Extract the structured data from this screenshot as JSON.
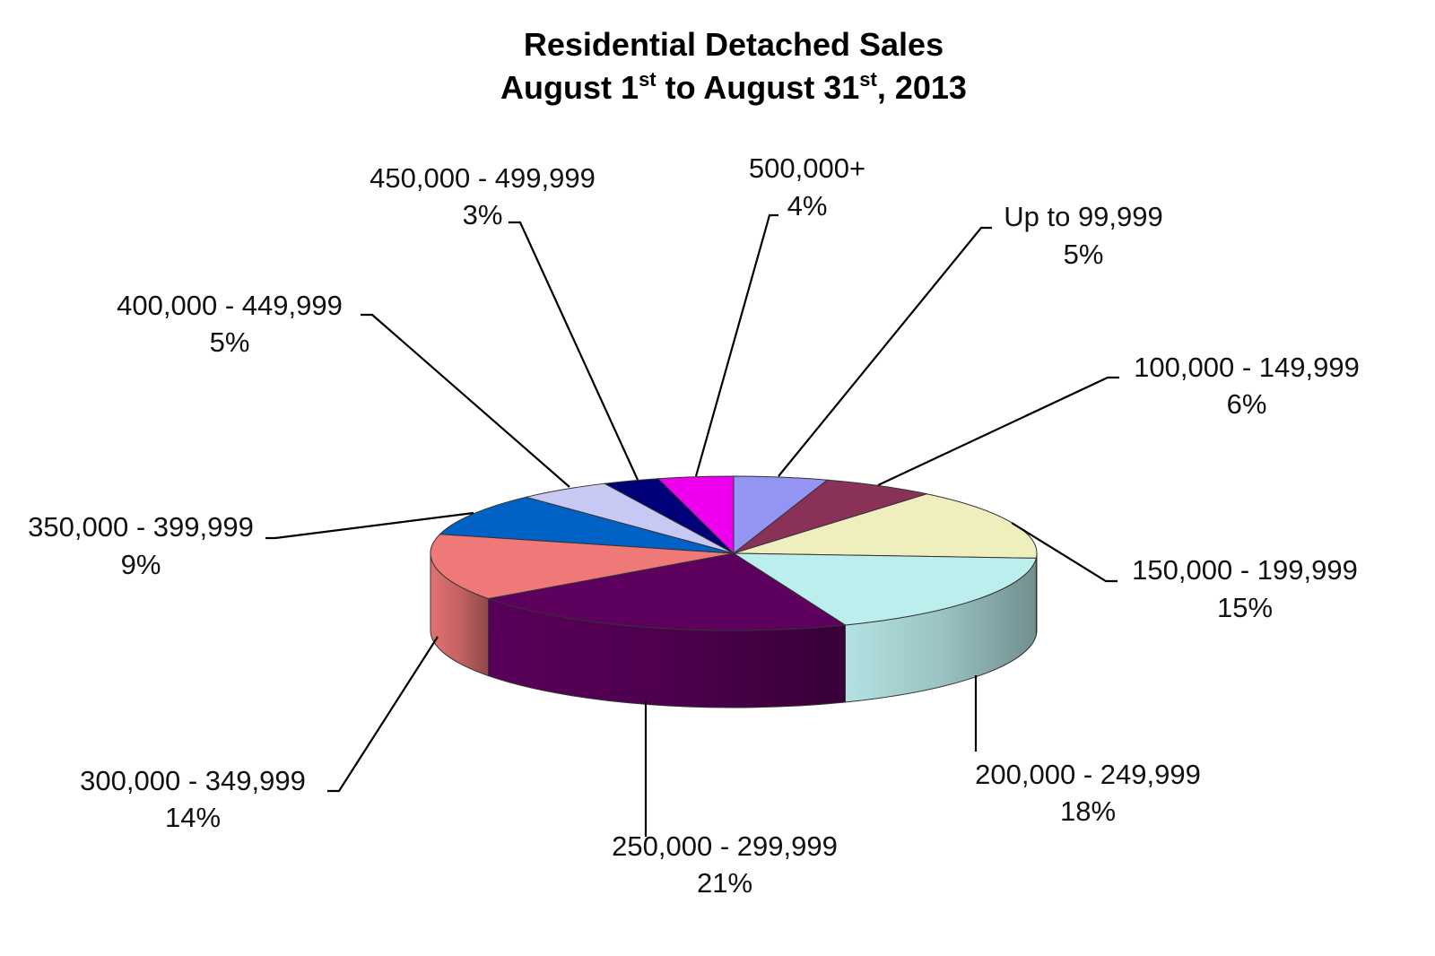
{
  "chart_data": {
    "type": "pie",
    "title": {
      "line1": "Residential Detached Sales",
      "line2_part1": "August 1",
      "line2_sup1": "st",
      "line2_part2": " to August 31",
      "line2_sup2": "st",
      "line2_part3": ", 2013"
    },
    "slices": [
      {
        "label": "Up to 99,999",
        "value": 5,
        "pct_text": "5%",
        "color": "#9494f2"
      },
      {
        "label": "100,000 - 149,999",
        "value": 6,
        "pct_text": "6%",
        "color": "#8a3158"
      },
      {
        "label": "150,000 - 199,999",
        "value": 15,
        "pct_text": "15%",
        "color": "#efefbd"
      },
      {
        "label": "200,000 - 249,999",
        "value": 18,
        "pct_text": "18%",
        "color": "#bdeeee"
      },
      {
        "label": "250,000 - 299,999",
        "value": 21,
        "pct_text": "21%",
        "color": "#5e005e"
      },
      {
        "label": "300,000 - 349,999",
        "value": 14,
        "pct_text": "14%",
        "color": "#ef7878"
      },
      {
        "label": "350,000 - 399,999",
        "value": 9,
        "pct_text": "9%",
        "color": "#0062c4"
      },
      {
        "label": "400,000 - 449,999",
        "value": 5,
        "pct_text": "5%",
        "color": "#c8c8f5"
      },
      {
        "label": "450,000 - 499,999",
        "value": 3,
        "pct_text": "3%",
        "color": "#000078"
      },
      {
        "label": "500,000+",
        "value": 4,
        "pct_text": "4%",
        "color": "#ee00ee"
      }
    ],
    "three_d": true,
    "legend": "none"
  }
}
